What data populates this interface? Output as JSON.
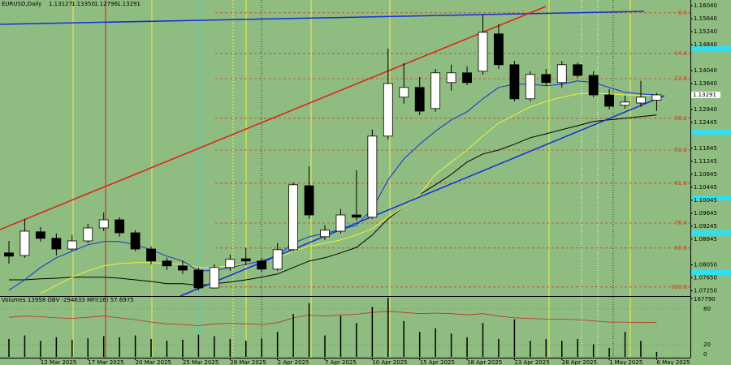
{
  "chart_data": {
    "type": "candlestick",
    "symbol": "EURUSD,Daily",
    "ohlc_value_labels": [
      "1.13127",
      "1.13350",
      "1.12796",
      "1.13291"
    ],
    "background": "#8fbc80",
    "categories": [
      null,
      null,
      "12 Mar 2025",
      null,
      null,
      "17 Mar 2025",
      null,
      null,
      "20 Mar 2025",
      null,
      null,
      "25 Mar 2025",
      null,
      null,
      "28 Mar 2025",
      null,
      null,
      "2 Apr 2025",
      null,
      null,
      "7 Apr 2025",
      null,
      null,
      "10 Apr 2025",
      null,
      null,
      "15 Apr 2025",
      null,
      null,
      "18 Apr 2025",
      null,
      null,
      "23 Apr 2025",
      null,
      null,
      "28 Apr 2025",
      null,
      null,
      "1 May 2025",
      null,
      null,
      "6 May 2025"
    ],
    "open": [
      1.0842,
      1.0834,
      1.0907,
      1.0887,
      1.0854,
      1.0879,
      1.0919,
      1.0944,
      1.0904,
      1.0854,
      1.0817,
      1.0802,
      1.0789,
      1.0734,
      1.0797,
      1.0824,
      1.0817,
      1.0792,
      1.0852,
      1.1049,
      1.0892,
      1.0909,
      1.0959,
      1.0952,
      1.1202,
      1.1322,
      1.1352,
      1.1287,
      1.1367,
      1.1397,
      1.1402,
      1.1517,
      1.1422,
      1.1317,
      1.1392,
      1.1367,
      1.1422,
      1.1389,
      1.1329,
      1.1297,
      1.1304,
      1.13127
    ],
    "high": [
      1.0879,
      1.0947,
      1.0922,
      1.0902,
      1.0897,
      1.0932,
      1.0967,
      1.0952,
      1.0912,
      1.0862,
      1.0827,
      1.0817,
      1.0797,
      1.0807,
      1.0837,
      1.0857,
      1.0827,
      1.0872,
      1.1059,
      1.1109,
      1.0927,
      1.0977,
      1.1097,
      1.1222,
      1.1472,
      1.1427,
      1.1384,
      1.1409,
      1.1422,
      1.1417,
      1.1577,
      1.1547,
      1.1434,
      1.1402,
      1.1409,
      1.1434,
      1.1429,
      1.1402,
      1.1347,
      1.1327,
      1.1372,
      1.1335
    ],
    "low": [
      1.0809,
      1.0827,
      1.0877,
      1.0834,
      1.0847,
      1.0872,
      1.0909,
      1.0892,
      1.0847,
      1.0807,
      1.0789,
      1.0777,
      1.0727,
      1.0732,
      1.0787,
      1.0804,
      1.0784,
      1.0787,
      1.0847,
      1.0947,
      1.0882,
      1.0902,
      1.0942,
      1.0947,
      1.1192,
      1.1302,
      1.1267,
      1.1277,
      1.1342,
      1.1359,
      1.1392,
      1.1409,
      1.1309,
      1.1309,
      1.1357,
      1.1352,
      1.1382,
      1.1322,
      1.1284,
      1.1287,
      1.1292,
      1.12796
    ],
    "close": [
      1.0832,
      1.0909,
      1.0887,
      1.0854,
      1.0879,
      1.0919,
      1.0944,
      1.0904,
      1.0854,
      1.0817,
      1.0802,
      1.0789,
      1.0734,
      1.0797,
      1.0822,
      1.0817,
      1.0792,
      1.0852,
      1.1052,
      1.0959,
      1.0912,
      1.0959,
      1.0952,
      1.1202,
      1.1364,
      1.1352,
      1.1279,
      1.1397,
      1.1397,
      1.1367,
      1.1522,
      1.1422,
      1.1317,
      1.1392,
      1.1367,
      1.1422,
      1.1389,
      1.1329,
      1.1294,
      1.1307,
      1.1322,
      1.13291
    ],
    "ylim": [
      1.0709,
      1.16215
    ],
    "yticks": [
      {
        "value": 1.1604,
        "label": "1.16040"
      },
      {
        "value": 1.1564,
        "label": "1.15640"
      },
      {
        "value": 1.1524,
        "label": "1.15240"
      },
      {
        "value": 1.1484,
        "label": "1.14840"
      },
      {
        "value": 1.1404,
        "label": "1.14040"
      },
      {
        "value": 1.1364,
        "label": "1.13640"
      },
      {
        "value": 1.1284,
        "label": "1.12840"
      },
      {
        "value": 1.12445,
        "label": "1.12445"
      },
      {
        "value": 1.11645,
        "label": "1.11645"
      },
      {
        "value": 1.11245,
        "label": "1.11245"
      },
      {
        "value": 1.10845,
        "label": "1.10845"
      },
      {
        "value": 1.10445,
        "label": "1.10445"
      },
      {
        "value": 1.10045,
        "label": "1.10045"
      },
      {
        "value": 1.09645,
        "label": "1.09645"
      },
      {
        "value": 1.09245,
        "label": "1.09245"
      },
      {
        "value": 1.08845,
        "label": "1.08845"
      },
      {
        "value": 1.0805,
        "label": "1.08050"
      },
      {
        "value": 1.0765,
        "label": "1.07650"
      },
      {
        "value": 1.0725,
        "label": "1.07250"
      }
    ],
    "fib_levels": [
      {
        "label": "0.0",
        "price": 1.1582
      },
      {
        "label": "14.6",
        "price": 1.1457
      },
      {
        "label": "23.6",
        "price": 1.1379
      },
      {
        "label": "38.2",
        "price": 1.1257
      },
      {
        "label": "50.0",
        "price": 1.1159
      },
      {
        "label": "61.8",
        "price": 1.1057
      },
      {
        "label": "76.4",
        "price": 1.0934
      },
      {
        "label": "88.6",
        "price": 1.0857
      },
      {
        "label": "100.0",
        "price": 1.0737
      }
    ],
    "fib_color": "#d04020",
    "overlays": [
      {
        "color": "#000000",
        "values": [
          1.0759,
          1.0759,
          1.0762,
          1.0764,
          1.0767,
          1.0767,
          1.0767,
          1.0764,
          1.0759,
          1.0754,
          1.0747,
          1.0747,
          1.0742,
          1.0747,
          1.0752,
          1.0759,
          1.0767,
          1.0777,
          1.0797,
          1.0817,
          1.0827,
          1.0842,
          1.0859,
          1.0897,
          1.0947,
          1.0984,
          1.1022,
          1.1052,
          1.1084,
          1.1122,
          1.1147,
          1.1159,
          1.1177,
          1.1197,
          1.1209,
          1.1222,
          1.1234,
          1.1247,
          1.1252,
          1.1257,
          1.1262,
          1.1267
        ]
      },
      {
        "color": "#f0f040",
        "values": [
          null,
          null,
          1.0717,
          1.0742,
          1.0767,
          1.0787,
          1.0802,
          1.0809,
          1.0812,
          1.0812,
          1.0809,
          1.0807,
          1.0797,
          1.0797,
          1.0802,
          1.0807,
          1.0817,
          1.0827,
          1.0847,
          1.0862,
          1.0872,
          1.0882,
          1.0897,
          1.0917,
          1.0952,
          1.0984,
          1.1022,
          1.1084,
          1.1122,
          1.1159,
          1.1202,
          1.1242,
          1.1267,
          1.1292,
          1.1309,
          1.1322,
          1.1332,
          1.1334,
          1.1332,
          1.1329,
          1.1327,
          1.1327
        ]
      },
      {
        "color": "#1030e0",
        "values": [
          1.0727,
          1.0759,
          1.0797,
          1.0827,
          1.0847,
          1.0867,
          1.0877,
          1.0877,
          1.0867,
          1.0852,
          1.0832,
          1.0817,
          1.0787,
          1.0787,
          1.0797,
          1.0807,
          1.0817,
          1.0834,
          1.0872,
          1.0892,
          1.0902,
          1.0914,
          1.0927,
          1.0977,
          1.1067,
          1.1132,
          1.1177,
          1.1217,
          1.1252,
          1.1277,
          1.1317,
          1.1352,
          1.1362,
          1.1362,
          1.1357,
          1.1362,
          1.1372,
          1.1367,
          1.1352,
          1.1337,
          1.1332,
          1.1329
        ]
      }
    ],
    "indicator_title": "Volumes 13958  OBV -294633  MFI(16) 57.6975",
    "volumes": [
      50000,
      60000,
      45000,
      55000,
      48000,
      52000,
      58000,
      55000,
      60000,
      50000,
      45000,
      48000,
      62000,
      58000,
      50000,
      45000,
      52000,
      70000,
      120000,
      150000,
      60000,
      115000,
      95000,
      140000,
      165000,
      100000,
      70000,
      80000,
      65000,
      55000,
      95000,
      50000,
      105000,
      45000,
      50000,
      45000,
      50000,
      35000,
      25000,
      70000,
      45000,
      13958
    ],
    "volume_ylim": [
      0,
      167790
    ],
    "volume_ticks": [
      167790
    ],
    "mfi": {
      "color": "#c03020",
      "values": [
        66,
        68,
        67,
        65,
        64,
        66,
        68,
        65,
        62,
        58,
        55,
        54,
        52,
        55,
        56,
        55,
        54,
        57,
        65,
        70,
        68,
        70,
        71,
        74,
        76,
        74,
        72,
        73,
        72,
        70,
        72,
        68,
        65,
        64,
        63,
        63,
        62,
        60,
        58,
        58,
        57,
        57.6975
      ]
    },
    "mfi_ylim": [
      0,
      100
    ],
    "mfi_ticks": [
      80,
      20,
      0
    ]
  }
}
